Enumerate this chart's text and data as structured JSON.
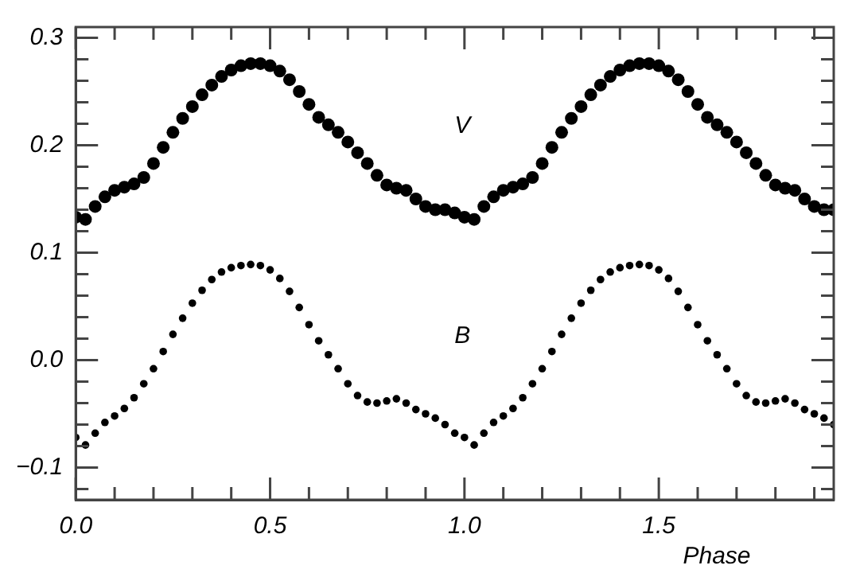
{
  "chart_data": {
    "type": "scatter",
    "xlabel": "Phase",
    "marker": "circle",
    "grid": false,
    "legend": false,
    "xlim": [
      0,
      1.95
    ],
    "ylim": [
      -0.13,
      0.31
    ],
    "xticks": [
      {
        "value": 0,
        "label": "0.0"
      },
      {
        "value": 0.1,
        "label": null
      },
      {
        "value": 0.2,
        "label": null
      },
      {
        "value": 0.3,
        "label": null
      },
      {
        "value": 0.4,
        "label": null
      },
      {
        "value": 0.5,
        "label": "0.5"
      },
      {
        "value": 0.6,
        "label": null
      },
      {
        "value": 0.7,
        "label": null
      },
      {
        "value": 0.8,
        "label": null
      },
      {
        "value": 0.9,
        "label": null
      },
      {
        "value": 1,
        "label": "1.0"
      },
      {
        "value": 1.1,
        "label": null
      },
      {
        "value": 1.2,
        "label": null
      },
      {
        "value": 1.3,
        "label": null
      },
      {
        "value": 1.4,
        "label": null
      },
      {
        "value": 1.5,
        "label": "1.5"
      },
      {
        "value": 1.6,
        "label": null
      },
      {
        "value": 1.7,
        "label": null
      },
      {
        "value": 1.8,
        "label": null
      },
      {
        "value": 1.9,
        "label": null
      }
    ],
    "yticks": [
      {
        "value": -0.12,
        "label": null
      },
      {
        "value": -0.1,
        "label": "−0.1"
      },
      {
        "value": -0.08,
        "label": null
      },
      {
        "value": -0.06,
        "label": null
      },
      {
        "value": -0.04,
        "label": null
      },
      {
        "value": -0.02,
        "label": null
      },
      {
        "value": 0,
        "label": "0.0"
      },
      {
        "value": 0.02,
        "label": null
      },
      {
        "value": 0.04,
        "label": null
      },
      {
        "value": 0.06,
        "label": null
      },
      {
        "value": 0.08,
        "label": null
      },
      {
        "value": 0.1,
        "label": "0.1"
      },
      {
        "value": 0.12,
        "label": null
      },
      {
        "value": 0.14,
        "label": null
      },
      {
        "value": 0.16,
        "label": null
      },
      {
        "value": 0.18,
        "label": null
      },
      {
        "value": 0.2,
        "label": "0.2"
      },
      {
        "value": 0.22,
        "label": null
      },
      {
        "value": 0.24,
        "label": null
      },
      {
        "value": 0.26,
        "label": null
      },
      {
        "value": 0.28,
        "label": null
      },
      {
        "value": 0.3,
        "label": "0.3"
      }
    ],
    "series": [
      {
        "name": "V",
        "color": "#000000",
        "x": [
          0,
          0.025,
          0.05,
          0.075,
          0.1,
          0.125,
          0.15,
          0.175,
          0.2,
          0.225,
          0.25,
          0.275,
          0.3,
          0.325,
          0.35,
          0.375,
          0.4,
          0.425,
          0.45,
          0.475,
          0.5,
          0.525,
          0.55,
          0.575,
          0.6,
          0.625,
          0.65,
          0.675,
          0.7,
          0.725,
          0.75,
          0.775,
          0.8,
          0.825,
          0.85,
          0.875,
          0.9,
          0.925,
          0.95,
          0.975,
          1,
          1.025,
          1.05,
          1.075,
          1.1,
          1.125,
          1.15,
          1.175,
          1.2,
          1.225,
          1.25,
          1.275,
          1.3,
          1.325,
          1.35,
          1.375,
          1.4,
          1.425,
          1.45,
          1.475,
          1.5,
          1.525,
          1.55,
          1.575,
          1.6,
          1.625,
          1.65,
          1.675,
          1.7,
          1.725,
          1.75,
          1.775,
          1.8,
          1.825,
          1.85,
          1.875,
          1.9,
          1.925,
          1.95
        ],
        "values": [
          0.133,
          0.131,
          0.143,
          0.152,
          0.158,
          0.161,
          0.164,
          0.17,
          0.183,
          0.198,
          0.212,
          0.225,
          0.236,
          0.247,
          0.256,
          0.264,
          0.27,
          0.274,
          0.276,
          0.276,
          0.274,
          0.269,
          0.261,
          0.25,
          0.238,
          0.226,
          0.219,
          0.212,
          0.203,
          0.193,
          0.183,
          0.172,
          0.163,
          0.16,
          0.158,
          0.15,
          0.143,
          0.14,
          0.14,
          0.137,
          0.133,
          0.131,
          0.143,
          0.152,
          0.158,
          0.161,
          0.164,
          0.17,
          0.183,
          0.198,
          0.212,
          0.225,
          0.236,
          0.247,
          0.256,
          0.264,
          0.27,
          0.274,
          0.276,
          0.276,
          0.274,
          0.269,
          0.261,
          0.25,
          0.238,
          0.226,
          0.219,
          0.212,
          0.203,
          0.193,
          0.183,
          0.172,
          0.163,
          0.16,
          0.158,
          0.15,
          0.143,
          0.14,
          0.14
        ]
      },
      {
        "name": "B",
        "color": "#000000",
        "x": [
          0,
          0.025,
          0.05,
          0.075,
          0.1,
          0.125,
          0.15,
          0.175,
          0.2,
          0.225,
          0.25,
          0.275,
          0.3,
          0.325,
          0.35,
          0.375,
          0.4,
          0.425,
          0.45,
          0.475,
          0.5,
          0.525,
          0.55,
          0.575,
          0.6,
          0.625,
          0.65,
          0.675,
          0.7,
          0.725,
          0.75,
          0.775,
          0.8,
          0.825,
          0.85,
          0.875,
          0.9,
          0.925,
          0.95,
          0.975,
          1,
          1.025,
          1.05,
          1.075,
          1.1,
          1.125,
          1.15,
          1.175,
          1.2,
          1.225,
          1.25,
          1.275,
          1.3,
          1.325,
          1.35,
          1.375,
          1.4,
          1.425,
          1.45,
          1.475,
          1.5,
          1.525,
          1.55,
          1.575,
          1.6,
          1.625,
          1.65,
          1.675,
          1.7,
          1.725,
          1.75,
          1.775,
          1.8,
          1.825,
          1.85,
          1.875,
          1.9,
          1.925,
          1.95
        ],
        "values": [
          -0.072,
          -0.079,
          -0.068,
          -0.058,
          -0.052,
          -0.045,
          -0.035,
          -0.022,
          -0.008,
          0.008,
          0.024,
          0.039,
          0.053,
          0.065,
          0.075,
          0.082,
          0.086,
          0.088,
          0.089,
          0.088,
          0.084,
          0.076,
          0.064,
          0.049,
          0.033,
          0.018,
          0.005,
          -0.008,
          -0.022,
          -0.033,
          -0.039,
          -0.04,
          -0.038,
          -0.036,
          -0.04,
          -0.046,
          -0.05,
          -0.054,
          -0.06,
          -0.068,
          -0.072,
          -0.079,
          -0.068,
          -0.058,
          -0.052,
          -0.045,
          -0.035,
          -0.022,
          -0.008,
          0.008,
          0.024,
          0.039,
          0.053,
          0.065,
          0.075,
          0.082,
          0.086,
          0.088,
          0.089,
          0.088,
          0.084,
          0.076,
          0.064,
          0.049,
          0.033,
          0.018,
          0.005,
          -0.008,
          -0.022,
          -0.033,
          -0.039,
          -0.04,
          -0.038,
          -0.036,
          -0.04,
          -0.046,
          -0.05,
          -0.054,
          -0.06
        ]
      }
    ]
  }
}
